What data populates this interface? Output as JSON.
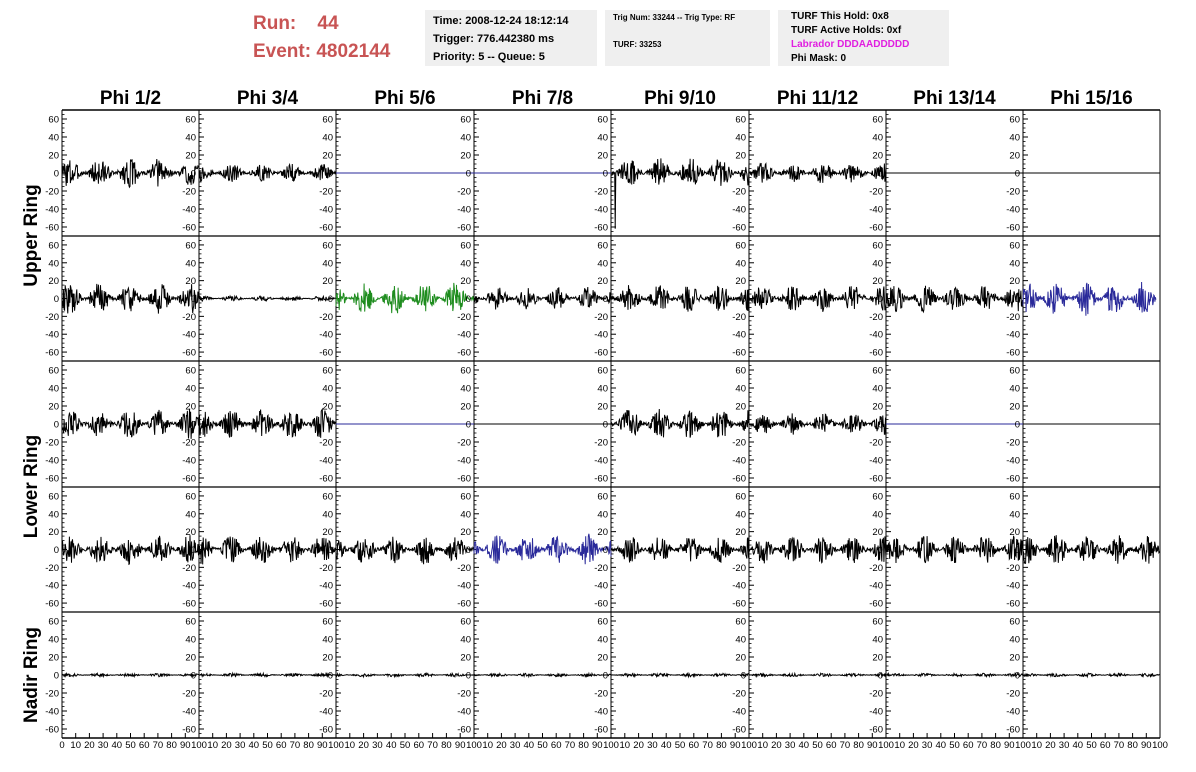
{
  "header": {
    "run_label": "Run:",
    "run_value": "44",
    "event_label": "Event:",
    "event_value": "4802144",
    "time": "Time: 2008-12-24 18:12:14",
    "trigger": "Trigger: 776.442380 ms",
    "priority": "Priority: 5 -- Queue: 5",
    "trig_num": "Trig Num: 33244 -- Trig Type: RF",
    "turf": "TURF: 33253",
    "turf_this_hold": "TURF This Hold: 0x8",
    "turf_active_holds": "TURF Active Holds: 0xf",
    "labrador": "Labrador DDDAADDDDD",
    "phi_mask": "Phi Mask: 0",
    "colors": {
      "run": "#c85454",
      "labrador": "#e020e0",
      "info_bg": "#efefef"
    }
  },
  "chart_data": {
    "type": "line",
    "columns": [
      "Phi 1/2",
      "Phi 3/4",
      "Phi 5/6",
      "Phi 7/8",
      "Phi 9/10",
      "Phi 11/12",
      "Phi 13/14",
      "Phi 15/16"
    ],
    "ring_labels": [
      "Upper Ring",
      "Lower Ring",
      "Nadir Ring"
    ],
    "rows_per_ring": [
      2,
      2,
      1
    ],
    "ylim": [
      -70,
      70
    ],
    "yticks": [
      "60",
      "40",
      "20",
      "0",
      "-20",
      "-40",
      "-60"
    ],
    "xlim": [
      0,
      100
    ],
    "xticks": [
      "0",
      "10",
      "20",
      "30",
      "40",
      "50",
      "60",
      "70",
      "80",
      "90",
      "100"
    ],
    "colors": {
      "black": "#000000",
      "blue": "#2a2a9a",
      "green": "#1e8c1e"
    },
    "panels": [
      [
        {
          "color": "black",
          "amp": 17,
          "x_end": 100
        },
        {
          "color": "black",
          "amp": 10,
          "x_end": 100
        },
        {
          "color": "blue",
          "amp": 0,
          "x_end": 100
        },
        {
          "color": "blue",
          "amp": 0,
          "x_end": 100
        },
        {
          "color": "black",
          "amp": 17,
          "x_end": 100,
          "spike": -62
        },
        {
          "color": "black",
          "amp": 12,
          "x_end": 100
        },
        {
          "color": "black",
          "amp": 0,
          "x_end": 100
        },
        {
          "color": "black",
          "amp": 0,
          "x_end": 100
        }
      ],
      [
        {
          "color": "black",
          "amp": 18,
          "x_end": 100
        },
        {
          "color": "black",
          "amp": 3,
          "x_end": 100
        },
        {
          "color": "green",
          "amp": 18,
          "x_end": 100
        },
        {
          "color": "black",
          "amp": 13,
          "x_end": 100
        },
        {
          "color": "black",
          "amp": 16,
          "x_end": 100
        },
        {
          "color": "black",
          "amp": 15,
          "x_end": 100
        },
        {
          "color": "black",
          "amp": 16,
          "x_end": 100
        },
        {
          "color": "blue",
          "amp": 20,
          "x_end": 97
        }
      ],
      [
        {
          "color": "black",
          "amp": 17,
          "x_end": 100
        },
        {
          "color": "black",
          "amp": 17,
          "x_end": 100
        },
        {
          "color": "blue",
          "amp": 0,
          "x_end": 100
        },
        {
          "color": "black",
          "amp": 0,
          "x_end": 100
        },
        {
          "color": "black",
          "amp": 17,
          "x_end": 100
        },
        {
          "color": "black",
          "amp": 12,
          "x_end": 100
        },
        {
          "color": "blue",
          "amp": 0,
          "x_end": 100
        },
        {
          "color": "black",
          "amp": 0,
          "x_end": 100
        }
      ],
      [
        {
          "color": "black",
          "amp": 17,
          "x_end": 100
        },
        {
          "color": "black",
          "amp": 17,
          "x_end": 100
        },
        {
          "color": "black",
          "amp": 17,
          "x_end": 100
        },
        {
          "color": "blue",
          "amp": 18,
          "x_end": 100
        },
        {
          "color": "black",
          "amp": 16,
          "x_end": 100
        },
        {
          "color": "black",
          "amp": 16,
          "x_end": 100
        },
        {
          "color": "black",
          "amp": 16,
          "x_end": 100
        },
        {
          "color": "black",
          "amp": 17,
          "x_end": 100
        }
      ],
      [
        {
          "color": "black",
          "amp": 2,
          "x_end": 100
        },
        {
          "color": "black",
          "amp": 2,
          "x_end": 100
        },
        {
          "color": "black",
          "amp": 2,
          "x_end": 100
        },
        {
          "color": "black",
          "amp": 2,
          "x_end": 100
        },
        {
          "color": "black",
          "amp": 2,
          "x_end": 100
        },
        {
          "color": "black",
          "amp": 2,
          "x_end": 100
        },
        {
          "color": "black",
          "amp": 2,
          "x_end": 100
        },
        {
          "color": "black",
          "amp": 2,
          "x_end": 100
        }
      ]
    ]
  }
}
